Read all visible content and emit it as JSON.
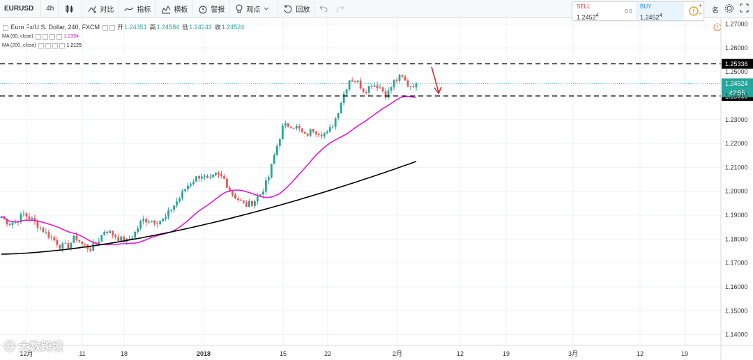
{
  "toolbar": {
    "symbol": "EURUSD",
    "interval": "4h",
    "compare_label": "对比",
    "indicators_label": "指标",
    "templates_label": "横板",
    "alert_label": "警报",
    "ideas_label": "观点",
    "replay_label": "回放",
    "right_partial_label": "名"
  },
  "trade_panel": {
    "sell_label": "SELL",
    "sell_price": "1.2452",
    "sell_sup": "4",
    "spread": "0.0",
    "buy_label": "BUY",
    "buy_price": "1.2452",
    "buy_sup": "4",
    "plus": "+",
    "minus": "−"
  },
  "legend": {
    "title": "Euro Fx/U.S. Dollar, 240, FXCM",
    "open_label": "开",
    "open": "1.24351",
    "high_label": "高",
    "high": "1.24584",
    "low_label": "低",
    "low": "1.24243",
    "close_label": "收",
    "close": "1.24524",
    "ma60_label": "MA (60, close)",
    "ma60_value": "1.2394",
    "ma200_label": "MA (200, close)",
    "ma200_value": "1.2125"
  },
  "watermark": "大数跨境",
  "colors": {
    "up": "#26a69a",
    "down": "#ef5350",
    "ma60": "#e31ad3",
    "ma200": "#000000",
    "arrow": "#d32f2f",
    "current_price_bg": "#26a69a"
  },
  "chart_data": {
    "type": "candlestick",
    "symbol": "EURUSD",
    "timeframe": "240",
    "ylim": [
      1.1355,
      1.2725
    ],
    "y_ticks": [
      "1.27000",
      "1.26000",
      "1.25000",
      "1.24000",
      "1.23000",
      "1.22000",
      "1.21000",
      "1.20000",
      "1.19000",
      "1.18000",
      "1.17000",
      "1.16000",
      "1.15000",
      "1.14000"
    ],
    "x_ticks": [
      "12月",
      "11",
      "18",
      "2018",
      "15",
      "22",
      "2月",
      "12",
      "19",
      "3月",
      "12",
      "19"
    ],
    "price_levels": [
      {
        "label": "1.25336",
        "value": 1.25336,
        "style": "dashed"
      },
      {
        "label": "1.23989",
        "value": 1.23989,
        "style": "dashed"
      }
    ],
    "current_price": {
      "label": "1.24524",
      "value": 1.24524,
      "countdown": "42:55"
    },
    "ma60_last": 1.2394,
    "ma200_last": 1.2125,
    "close_path": [
      1.1895,
      1.1865,
      1.1875,
      1.1905,
      1.1885,
      1.1855,
      1.1825,
      1.18,
      1.177,
      1.177,
      1.181,
      1.1775,
      1.176,
      1.179,
      1.184,
      1.182,
      1.18,
      1.179,
      1.1825,
      1.188,
      1.188,
      1.1875,
      1.188,
      1.193,
      1.197,
      1.202,
      1.205,
      1.207,
      1.204,
      1.207,
      1.2055,
      1.1995,
      1.1965,
      1.194,
      1.1955,
      1.199,
      1.205,
      1.217,
      1.227,
      1.228,
      1.2265,
      1.223,
      1.226,
      1.2245,
      1.224,
      1.2295,
      1.239,
      1.247,
      1.246,
      1.242,
      1.245,
      1.244,
      1.24,
      1.246,
      1.248,
      1.244,
      1.2452
    ]
  }
}
